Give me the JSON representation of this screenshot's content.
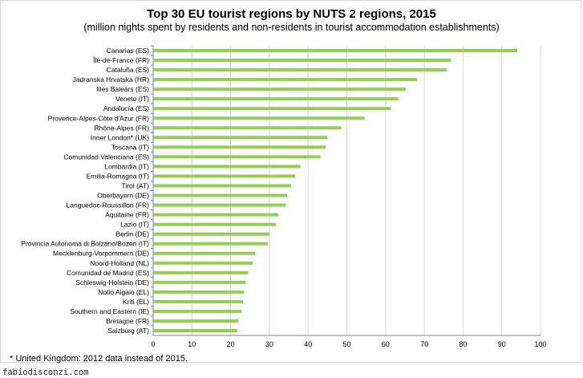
{
  "header": {
    "title": "Top 30 EU tourist regions by NUTS 2 regions, 2015",
    "subtitle": "(million nights spent by residents and non-residents in tourist accommodation establishments)"
  },
  "footnote": "* United Kingdom: 2012 data instead of 2015.",
  "watermark": "fabiodisconzi.com",
  "chart_data": {
    "type": "bar",
    "orientation": "horizontal",
    "title": "Top 30 EU tourist regions by NUTS 2 regions, 2015",
    "subtitle": "(million nights spent by residents and non-residents in tourist accommodation establishments)",
    "categories": [
      "Canarias (ES)",
      "Île-de-France (FR)",
      "Cataluña (ES)",
      "Jadranska Hrvatska (HR)",
      "Illes Balears (ES)",
      "Veneto (IT)",
      "Andalucía (ES)",
      "Provence-Alpes-Côte d'Azur (FR)",
      "Rhône-Alpes (FR)",
      "Inner London* (UK)",
      "Toscana (IT)",
      "Comunidad Valenciana (ES)",
      "Lombardia (IT)",
      "Emilia-Romagna (IT)",
      "Tirol (AT)",
      "Oberbayern (DE)",
      "Languedoc-Roussillon (FR)",
      "Aquitaine (FR)",
      "Lazio (IT)",
      "Berlin (DE)",
      "Provincia Autonoma di Bolzano/Bozen (IT)",
      "Mecklenburg-Vorpommern (DE)",
      "Noord-Holland (NL)",
      "Comunidad de Madrid (ES)",
      "Schleswig-Holstein (DE)",
      "Notio Aigaio (EL)",
      "Kriti (EL)",
      "Southern and Eastern (IE)",
      "Bretagne (FR)",
      "Salzburg (AT)"
    ],
    "values": [
      94.0,
      76.9,
      75.8,
      68.1,
      65.2,
      63.3,
      61.3,
      54.6,
      48.6,
      45.0,
      44.5,
      43.2,
      38.0,
      36.7,
      35.6,
      34.6,
      34.2,
      32.3,
      31.7,
      30.1,
      29.6,
      26.3,
      25.7,
      24.5,
      23.9,
      23.5,
      23.2,
      22.8,
      22.0,
      21.7
    ],
    "xlim": [
      0,
      100
    ],
    "xticks": [
      0,
      10,
      20,
      30,
      40,
      50,
      60,
      70,
      80,
      90,
      100
    ],
    "grid": true,
    "bar_color": "#92d050",
    "grid_color": "#d9d9d9",
    "legend": "none"
  }
}
